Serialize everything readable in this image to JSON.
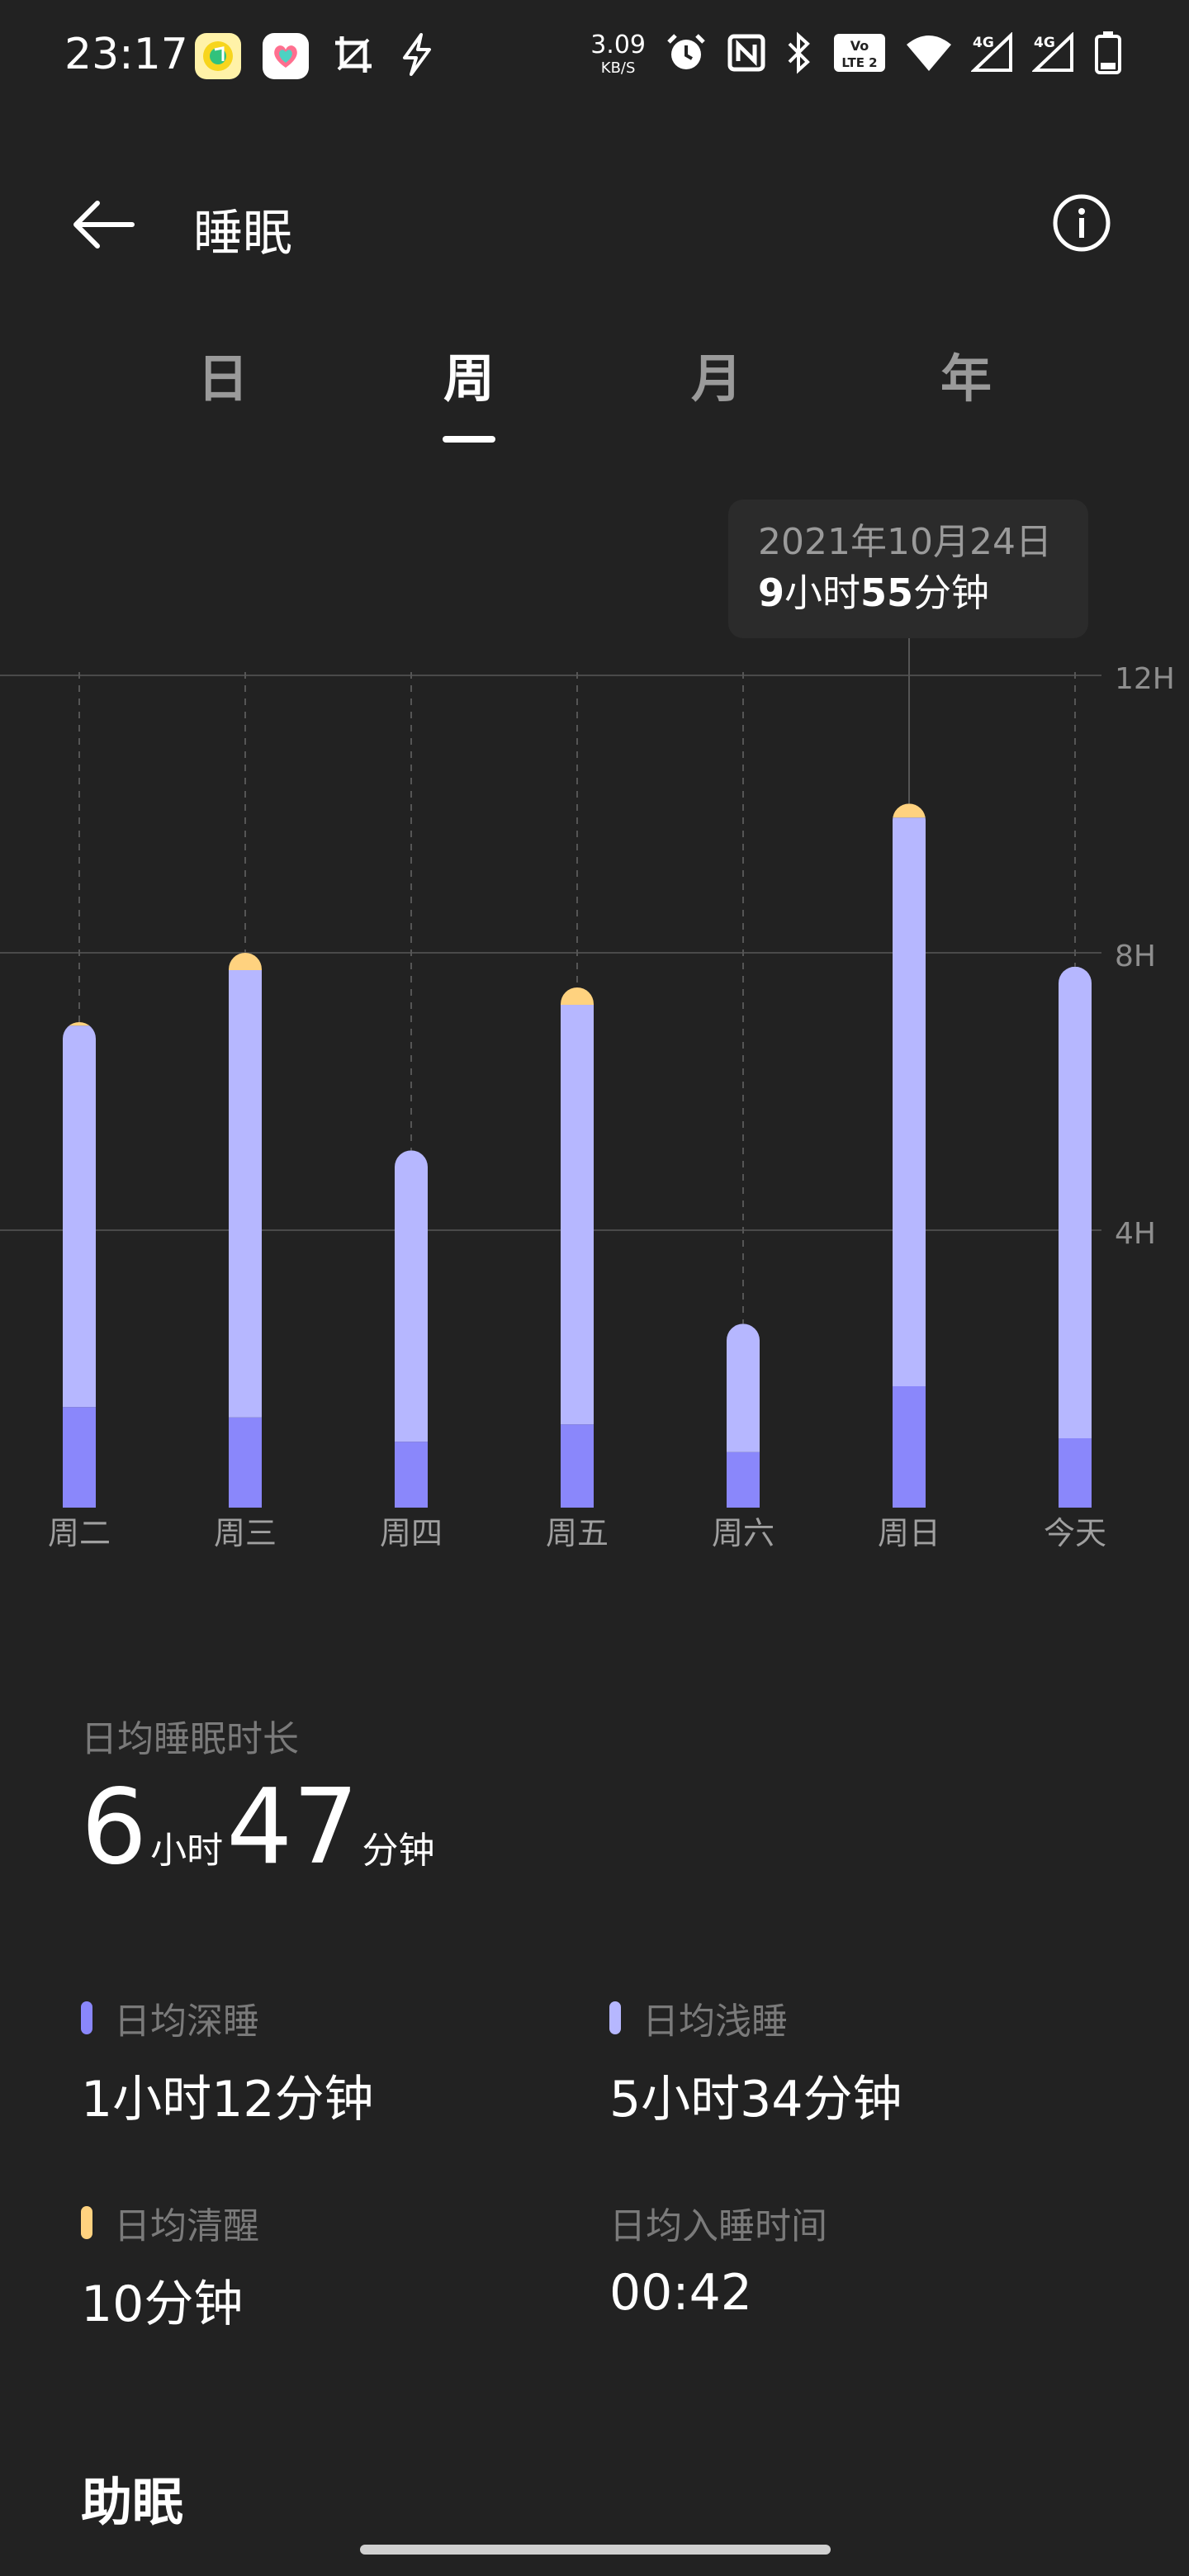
{
  "status_bar": {
    "time": "23:17",
    "net_speed_value": "3.09",
    "net_speed_unit": "KB/S",
    "icons_left": [
      "music-app-icon",
      "heart-app-icon",
      "crop-icon",
      "flash-icon"
    ],
    "icons_right": [
      "alarm-icon",
      "nfc-icon",
      "bluetooth-icon",
      "volte-icon",
      "wifi-icon",
      "signal-4g-icon",
      "signal-4g-icon",
      "battery-icon"
    ],
    "volte_label": "LTE 2",
    "net_label": "4G"
  },
  "header": {
    "title": "睡眠",
    "back_icon": "back-arrow-icon",
    "info_icon": "info-icon"
  },
  "tabs": [
    {
      "label": "日",
      "active": false
    },
    {
      "label": "周",
      "active": true
    },
    {
      "label": "月",
      "active": false
    },
    {
      "label": "年",
      "active": false
    }
  ],
  "tooltip": {
    "date": "2021年10月24日",
    "hours": "9",
    "hours_unit": "小时",
    "minutes": "55",
    "minutes_unit": "分钟"
  },
  "chart_data": {
    "type": "bar",
    "stacked": true,
    "categories": [
      "周二",
      "周三",
      "周四",
      "周五",
      "周六",
      "周日",
      "今天"
    ],
    "y_ticks": [
      "12H",
      "8H",
      "4H"
    ],
    "ylim": [
      0,
      12
    ],
    "series": [
      {
        "name": "日均深睡",
        "color": "#8a87fb",
        "values": [
          1.45,
          1.3,
          0.95,
          1.2,
          0.8,
          1.75,
          1.0
        ]
      },
      {
        "name": "日均浅睡",
        "color": "#b6b7ff",
        "values": [
          5.5,
          6.45,
          4.2,
          6.05,
          1.85,
          8.2,
          6.8
        ]
      },
      {
        "name": "日均清醒",
        "color": "#ffd27f",
        "values": [
          0.05,
          0.25,
          0.0,
          0.25,
          0.0,
          0.2,
          0.0
        ]
      }
    ],
    "selected_index": 5,
    "grid": true
  },
  "summary": {
    "label": "日均睡眠时长",
    "hours": "6",
    "hours_unit": "小时",
    "minutes": "47",
    "minutes_unit": "分钟"
  },
  "stats": [
    {
      "label": "日均深睡",
      "value": "1小时12分钟",
      "color": "#8a87fb",
      "dot": true
    },
    {
      "label": "日均浅睡",
      "value": "5小时34分钟",
      "color": "#b6b7ff",
      "dot": true
    },
    {
      "label": "日均清醒",
      "value": "10分钟",
      "color": "#ffd27f",
      "dot": true
    },
    {
      "label": "日均入睡时间",
      "value": "00:42",
      "color": "",
      "dot": false
    }
  ],
  "section": {
    "title": "助眠"
  }
}
